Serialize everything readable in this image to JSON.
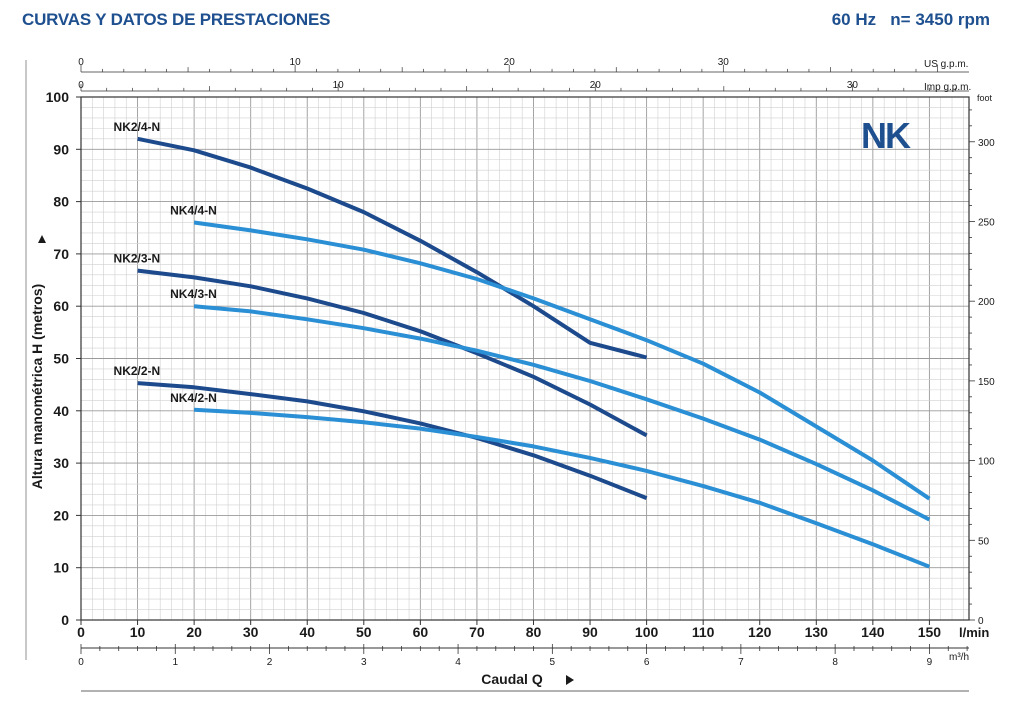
{
  "header": {
    "title": "CURVAS Y DATOS DE PRESTACIONES",
    "frequency": "60 Hz",
    "speed": "n= 3450 rpm"
  },
  "chart_data": {
    "type": "line",
    "title": "CURVAS Y DATOS DE PRESTACIONES",
    "brand": "NK",
    "ylabel": "Altura manométrica H (metros)",
    "xlabel": "Caudal Q",
    "xlim": [
      0,
      157
    ],
    "ylim": [
      0,
      100
    ],
    "x_unit": "l/min",
    "x_ticks": [
      0,
      10,
      20,
      30,
      40,
      50,
      60,
      70,
      80,
      90,
      100,
      110,
      120,
      130,
      140,
      150
    ],
    "y_ticks": [
      0,
      10,
      20,
      30,
      40,
      50,
      60,
      70,
      80,
      90,
      100
    ],
    "grid": true,
    "secondary_axes": {
      "feet": {
        "unit": "feet",
        "ticks": [
          0,
          50,
          100,
          150,
          200,
          250,
          300
        ]
      },
      "m3h": {
        "unit": "m³/h",
        "ticks": [
          0,
          1,
          2,
          3,
          4,
          5,
          6,
          7,
          8,
          9
        ]
      },
      "us_gpm": {
        "unit": "US g.p.m.",
        "ticks": [
          0,
          10,
          20,
          30
        ]
      },
      "imp_gpm": {
        "unit": "Imp g.p.m.",
        "ticks": [
          0,
          10,
          20,
          30
        ]
      }
    },
    "series": [
      {
        "name": "NK2/4-N",
        "color": "#1c4a8c",
        "x": [
          10,
          20,
          30,
          40,
          50,
          60,
          70,
          80,
          90,
          100
        ],
        "y": [
          92,
          89.8,
          86.5,
          82.5,
          78,
          72.5,
          66.5,
          60,
          53,
          50.2
        ]
      },
      {
        "name": "NK4/4-N",
        "color": "#2a8fd4",
        "x": [
          20,
          30,
          40,
          50,
          60,
          70,
          80,
          90,
          100,
          110,
          120,
          130,
          140,
          150
        ],
        "y": [
          76,
          74.5,
          72.8,
          70.8,
          68.2,
          65.2,
          61.5,
          57.5,
          53.5,
          49,
          43.5,
          37,
          30.5,
          23.2
        ]
      },
      {
        "name": "NK2/3-N",
        "color": "#1c4a8c",
        "x": [
          10,
          20,
          30,
          40,
          50,
          60,
          70,
          80,
          90,
          100
        ],
        "y": [
          66.8,
          65.5,
          63.8,
          61.5,
          58.7,
          55.2,
          51,
          46.5,
          41.2,
          35.3
        ]
      },
      {
        "name": "NK4/3-N",
        "color": "#2a8fd4",
        "x": [
          20,
          30,
          40,
          50,
          60,
          70,
          80,
          90,
          100,
          110,
          120,
          130,
          140,
          150
        ],
        "y": [
          60,
          59,
          57.5,
          55.8,
          53.8,
          51.5,
          48.8,
          45.7,
          42.2,
          38.5,
          34.5,
          29.8,
          24.8,
          19.2
        ]
      },
      {
        "name": "NK2/2-N",
        "color": "#1c4a8c",
        "x": [
          10,
          20,
          30,
          40,
          50,
          60,
          70,
          80,
          90,
          100
        ],
        "y": [
          45.3,
          44.5,
          43.2,
          41.8,
          39.9,
          37.6,
          34.8,
          31.5,
          27.6,
          23.3
        ]
      },
      {
        "name": "NK4/2-N",
        "color": "#2a8fd4",
        "x": [
          20,
          30,
          40,
          50,
          60,
          70,
          80,
          90,
          100,
          110,
          120,
          130,
          140,
          150
        ],
        "y": [
          40.2,
          39.6,
          38.8,
          37.8,
          36.6,
          35,
          33.2,
          31,
          28.5,
          25.6,
          22.4,
          18.5,
          14.5,
          10.2
        ]
      }
    ]
  }
}
